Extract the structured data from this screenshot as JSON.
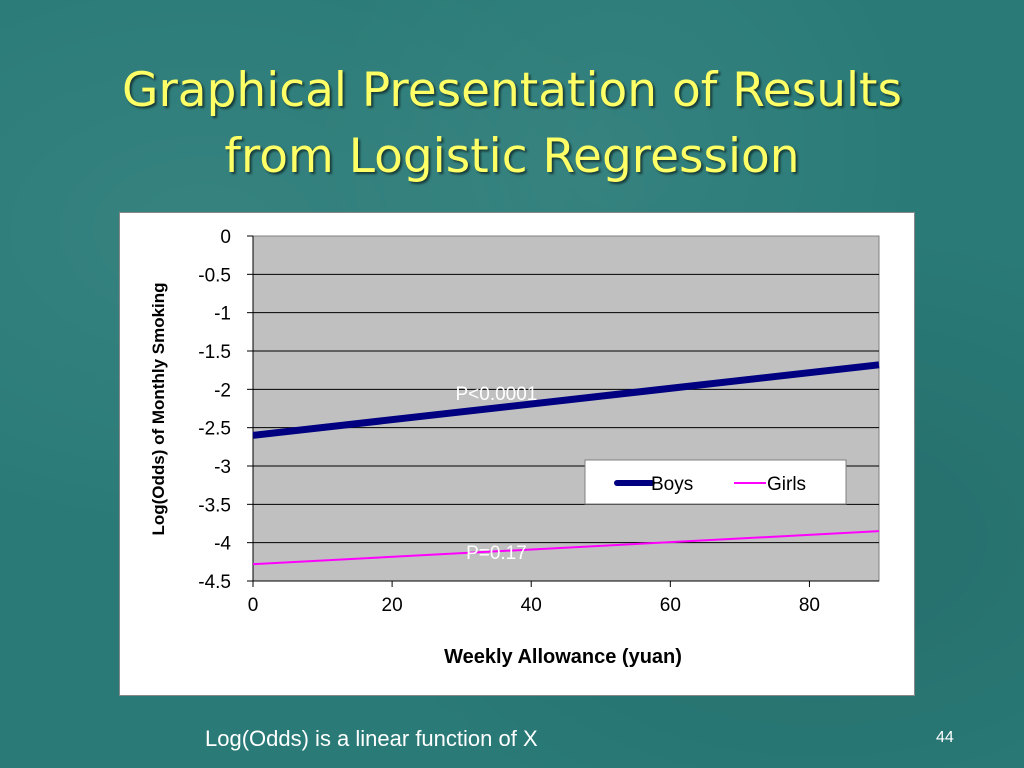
{
  "slide": {
    "title_line1": "Graphical Presentation of Results",
    "title_line2": "from Logistic Regression",
    "footer": "Log(Odds) is a linear function of X",
    "page_number": "44"
  },
  "chart_data": {
    "type": "line",
    "xlabel": "Weekly Allowance (yuan)",
    "ylabel": "Log(Odds) of Monthly Smoking",
    "xlim": [
      0,
      90
    ],
    "ylim": [
      -4.5,
      0
    ],
    "x_ticks": [
      0,
      20,
      40,
      60,
      80
    ],
    "y_ticks": [
      0,
      -0.5,
      -1,
      -1.5,
      -2,
      -2.5,
      -3,
      -3.5,
      -4,
      -4.5
    ],
    "grid": true,
    "legend_position": "center-right",
    "series": [
      {
        "name": "Boys",
        "x": [
          0,
          90
        ],
        "y": [
          -2.6,
          -1.68
        ],
        "color": "#000080",
        "line": "thick"
      },
      {
        "name": "Girls",
        "x": [
          0,
          90
        ],
        "y": [
          -4.28,
          -3.85
        ],
        "color": "#ff00ff",
        "line": "thin"
      }
    ],
    "annotations": [
      {
        "text": "P<0.0001",
        "x": 35,
        "y": -2.05
      },
      {
        "text": "P=0.17",
        "x": 35,
        "y": -4.12
      }
    ],
    "colors": {
      "plot_bg": "#c0c0c0",
      "annotation_text": "#ffffff"
    }
  }
}
